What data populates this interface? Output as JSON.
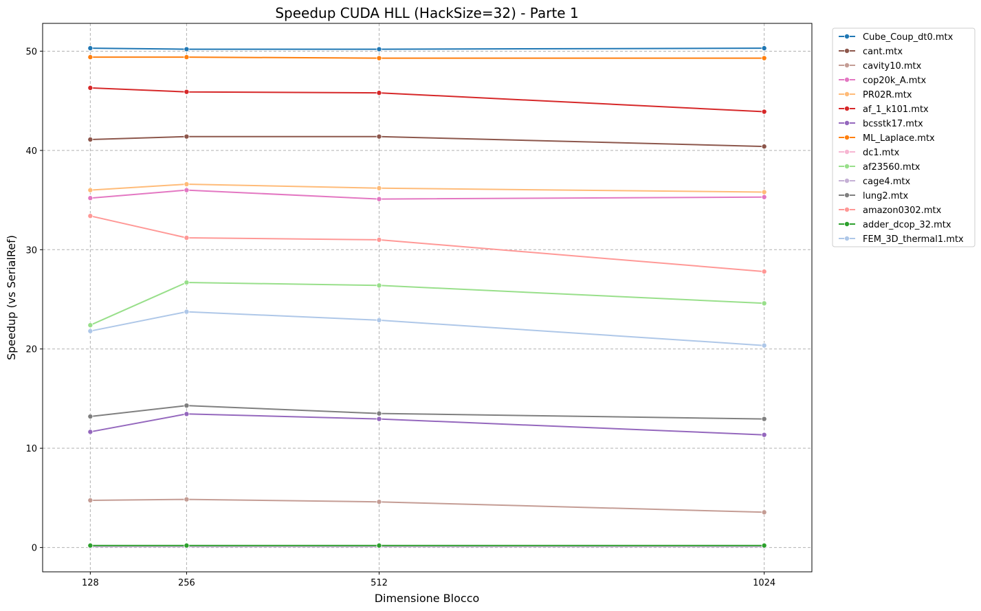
{
  "chart_data": {
    "type": "line",
    "title": "Speedup CUDA HLL (HackSize=32) - Parte 1",
    "xlabel": "Dimensione Blocco",
    "ylabel": "Speedup (vs SerialRef)",
    "x": [
      128,
      256,
      512,
      1024
    ],
    "x_tick_labels": [
      "128",
      "256",
      "512",
      "1024"
    ],
    "xlim": [
      64.6,
      1087.4
    ],
    "ylim": [
      -2.45,
      52.8
    ],
    "y_ticks": [
      0,
      10,
      20,
      30,
      40,
      50
    ],
    "y_tick_labels": [
      "0",
      "10",
      "20",
      "30",
      "40",
      "50"
    ],
    "grid": true,
    "legend_position": "outside-top-right",
    "series": [
      {
        "name": "Cube_Coup_dt0.mtx",
        "color": "#1f77b4",
        "values": [
          50.3,
          50.2,
          50.2,
          50.3
        ]
      },
      {
        "name": "cant.mtx",
        "color": "#8c564b",
        "values": [
          41.1,
          41.4,
          41.4,
          40.4
        ]
      },
      {
        "name": "cavity10.mtx",
        "color": "#c49c94",
        "values": [
          4.75,
          4.85,
          4.6,
          3.55
        ]
      },
      {
        "name": "cop20k_A.mtx",
        "color": "#e377c2",
        "values": [
          35.2,
          36.0,
          35.1,
          35.3
        ]
      },
      {
        "name": "PR02R.mtx",
        "color": "#ffbb78",
        "values": [
          36.0,
          36.6,
          36.2,
          35.8
        ]
      },
      {
        "name": "af_1_k101.mtx",
        "color": "#d62728",
        "values": [
          46.3,
          45.9,
          45.8,
          43.9
        ]
      },
      {
        "name": "bcsstk17.mtx",
        "color": "#9467bd",
        "values": [
          11.65,
          13.45,
          12.95,
          11.35
        ]
      },
      {
        "name": "ML_Laplace.mtx",
        "color": "#ff7f0e",
        "values": [
          49.4,
          49.4,
          49.3,
          49.3
        ]
      },
      {
        "name": "dc1.mtx",
        "color": "#f7b6d2",
        "values": [
          0.1,
          0.1,
          0.1,
          0.1
        ]
      },
      {
        "name": "af23560.mtx",
        "color": "#98df8a",
        "values": [
          22.4,
          26.7,
          26.4,
          24.6
        ]
      },
      {
        "name": "cage4.mtx",
        "color": "#c5b0d5",
        "values": [
          0.1,
          0.1,
          0.1,
          0.1
        ]
      },
      {
        "name": "lung2.mtx",
        "color": "#7f7f7f",
        "values": [
          13.2,
          14.3,
          13.5,
          12.95
        ]
      },
      {
        "name": "amazon0302.mtx",
        "color": "#ff9896",
        "values": [
          33.4,
          31.2,
          31.0,
          27.8
        ]
      },
      {
        "name": "adder_dcop_32.mtx",
        "color": "#2ca02c",
        "values": [
          0.2,
          0.2,
          0.2,
          0.2
        ]
      },
      {
        "name": "FEM_3D_thermal1.mtx",
        "color": "#aec7e8",
        "values": [
          21.8,
          23.75,
          22.9,
          20.35
        ]
      }
    ]
  }
}
